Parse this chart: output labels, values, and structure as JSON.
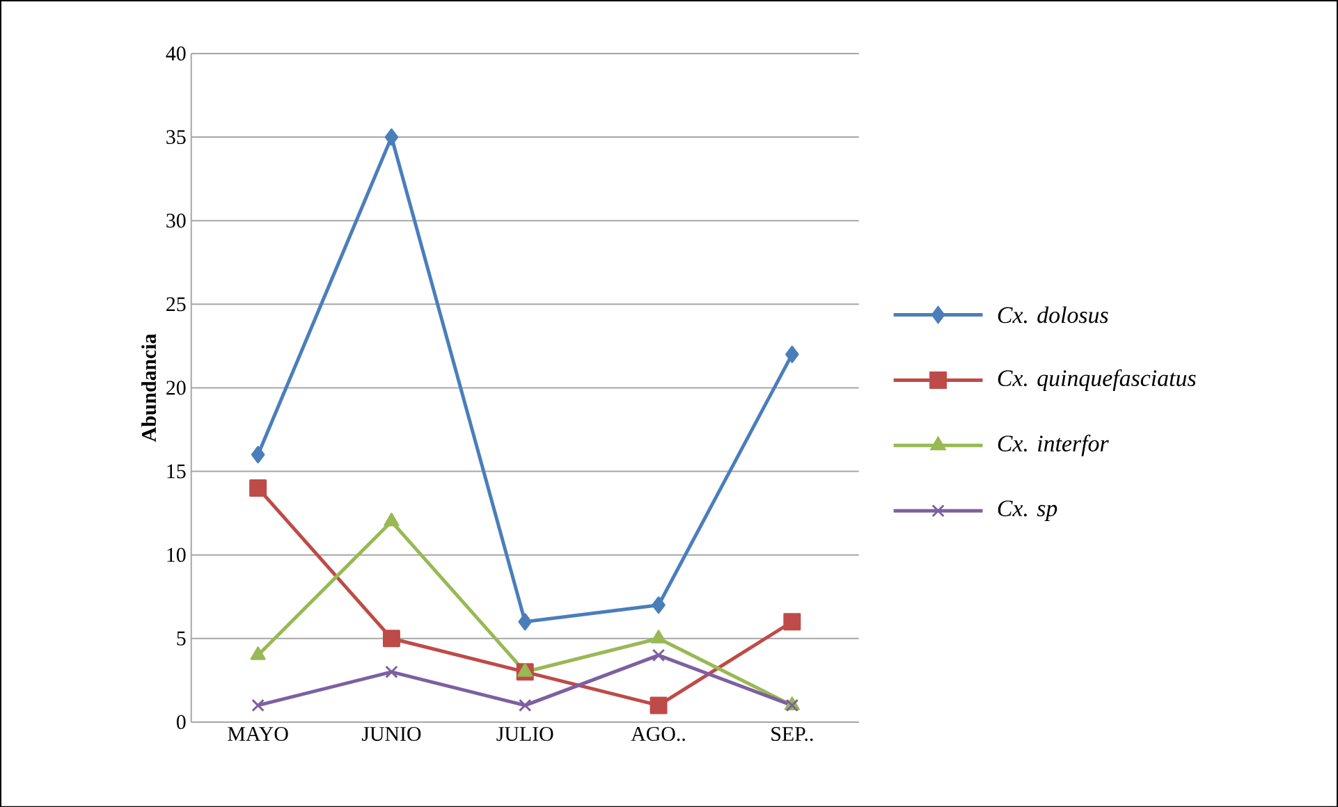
{
  "chart_data": {
    "type": "line",
    "ylabel": "Abundancia",
    "categories": [
      "MAYO",
      "JUNIO",
      "JULIO",
      "AGO..",
      "SEP.."
    ],
    "series": [
      {
        "name": "Cx. dolosus",
        "color": "#4a7ebb",
        "marker": "diamond",
        "values": [
          16,
          35,
          6,
          7,
          22
        ]
      },
      {
        "name": "Cx. quinquefasciatus",
        "color": "#be4b48",
        "marker": "square",
        "values": [
          14,
          5,
          3,
          1,
          6
        ]
      },
      {
        "name": "Cx. interfor",
        "color": "#98b954",
        "marker": "triangle",
        "values": [
          4,
          12,
          3,
          5,
          1
        ]
      },
      {
        "name": "Cx. sp",
        "color": "#7d60a0",
        "marker": "cross",
        "values": [
          1,
          3,
          1,
          4,
          1
        ]
      }
    ],
    "ylim": [
      0,
      40
    ],
    "yticks": [
      0,
      5,
      10,
      15,
      20,
      25,
      30,
      35,
      40
    ],
    "grid": "y",
    "legend": "right"
  }
}
